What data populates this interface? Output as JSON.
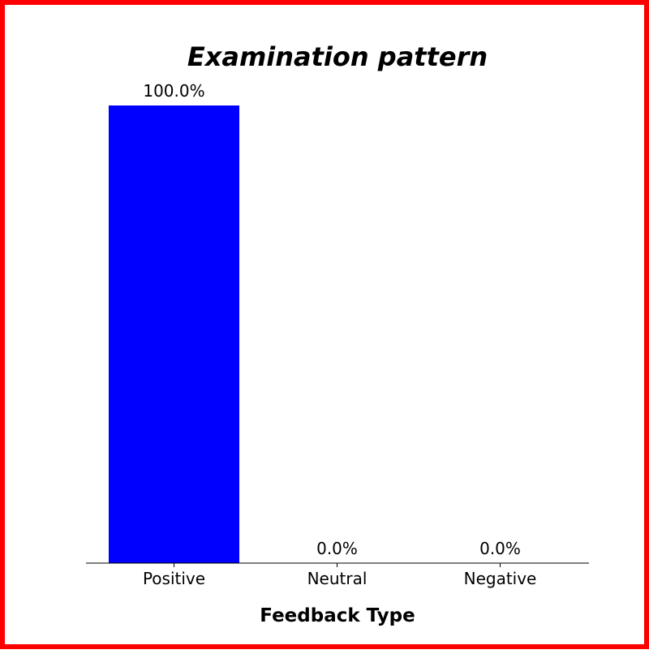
{
  "colors": {
    "border": "#ff0000",
    "bar": "#0000ff",
    "axis": "#000000",
    "background": "#ffffff"
  },
  "chart_data": {
    "type": "bar",
    "title": "Examination pattern",
    "xlabel": "Feedback Type",
    "ylabel": "",
    "categories": [
      "Positive",
      "Neutral",
      "Negative"
    ],
    "values": [
      100.0,
      0.0,
      0.0
    ],
    "data_labels": [
      "100.0%",
      "0.0%",
      "0.0%"
    ],
    "ylim": [
      0,
      100
    ],
    "grid": false,
    "legend": "none"
  }
}
